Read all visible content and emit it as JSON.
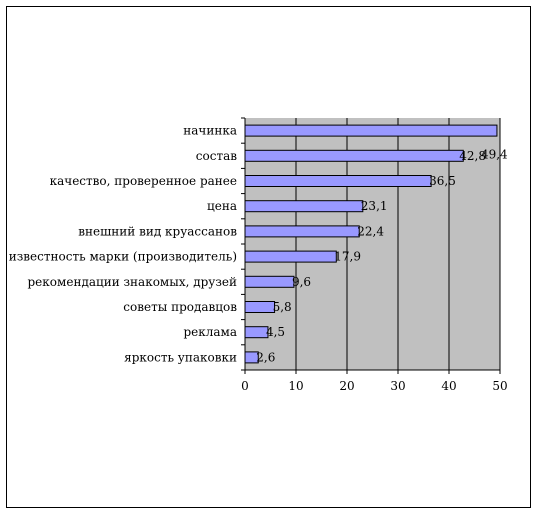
{
  "chart_data": {
    "type": "bar",
    "orientation": "horizontal",
    "categories": [
      "начинка",
      "состав",
      "качество, проверенное ранее",
      "цена",
      "внешний вид круассанов",
      "известность марки (производитель)",
      "рекомендации знакомых, друзей",
      "советы продавцов",
      "реклама",
      "яркость упаковки"
    ],
    "values": [
      49.4,
      42.8,
      36.5,
      23.1,
      22.4,
      17.9,
      9.6,
      5.8,
      4.5,
      2.6
    ],
    "value_labels": [
      "49,4",
      "42,8",
      "36,5",
      "23,1",
      "22,4",
      "17,9",
      "9,6",
      "5,8",
      "4,5",
      "2,6"
    ],
    "x_ticks": [
      "0",
      "10",
      "20",
      "30",
      "40",
      "50"
    ],
    "xlim": [
      0,
      50
    ],
    "grid": true,
    "colors": {
      "bar": "#9999ff",
      "plot_bg": "#c0c0c0",
      "grid": "#000000"
    }
  }
}
